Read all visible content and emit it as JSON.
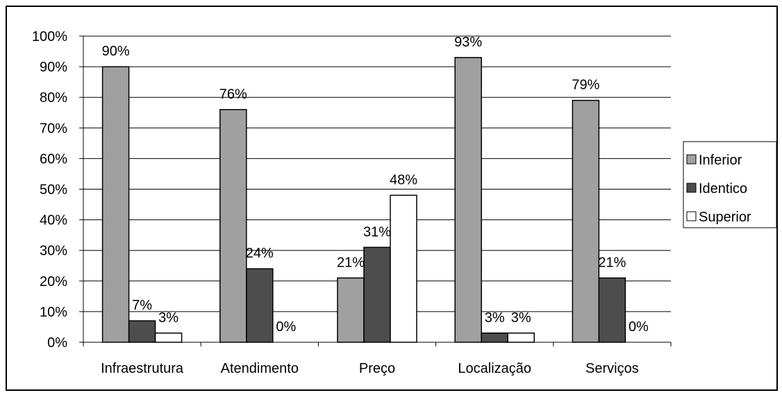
{
  "chart_data": {
    "type": "bar",
    "categories": [
      "Infraestrutura",
      "Atendimento",
      "Preço",
      "Localização",
      "Serviços"
    ],
    "series": [
      {
        "name": "Inferior",
        "values": [
          90,
          76,
          21,
          93,
          79
        ],
        "labels": [
          "90%",
          "76%",
          "21%",
          "93%",
          "79%"
        ],
        "color": "#a0a0a0"
      },
      {
        "name": "Identico",
        "values": [
          7,
          24,
          31,
          3,
          21
        ],
        "labels": [
          "7%",
          "24%",
          "31%",
          "3%",
          "21%"
        ],
        "color": "#4d4d4d"
      },
      {
        "name": "Superior",
        "values": [
          3,
          0,
          48,
          3,
          0
        ],
        "labels": [
          "3%",
          "0%",
          "48%",
          "3%",
          "0%"
        ],
        "color": "#ffffff"
      }
    ],
    "yticks": [
      "0%",
      "10%",
      "20%",
      "30%",
      "40%",
      "50%",
      "60%",
      "70%",
      "80%",
      "90%",
      "100%"
    ],
    "ylim": [
      0,
      100
    ],
    "grid": true,
    "legend": "right"
  }
}
